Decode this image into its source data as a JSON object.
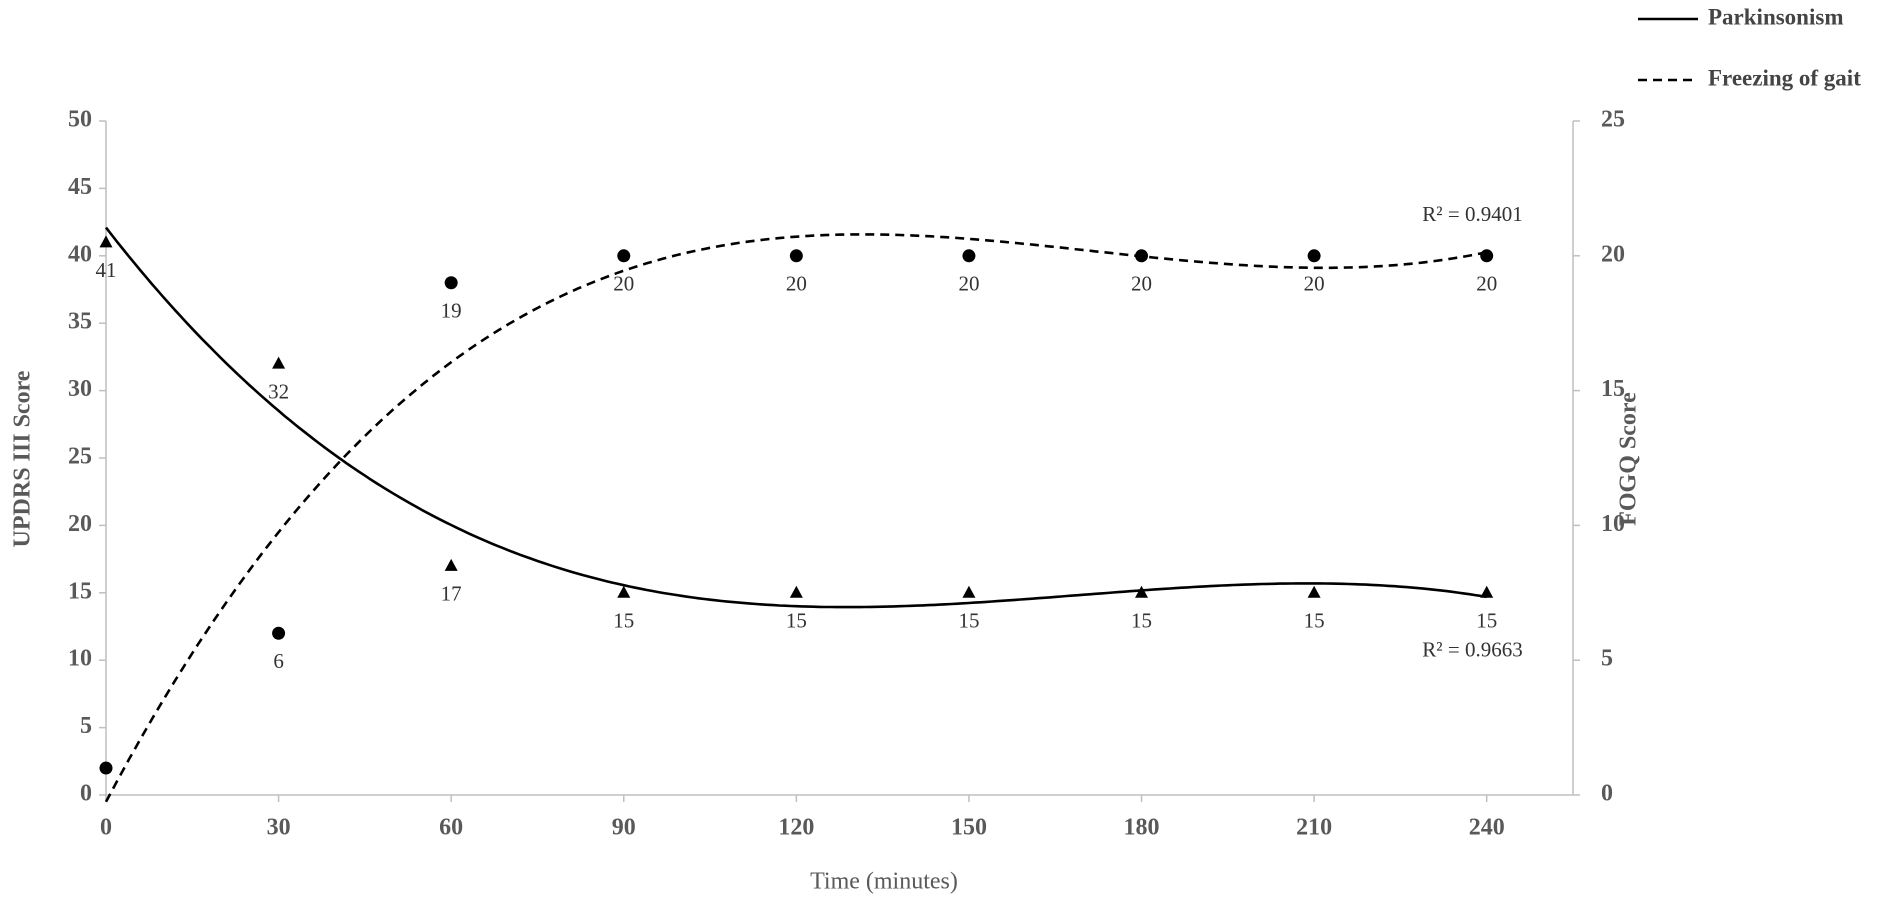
{
  "chart_data": {
    "type": "scatter",
    "x_label": "Time (minutes)",
    "y_label": "UPDRS III Score",
    "y2_label": "FOGQ Score",
    "x": [
      0,
      30,
      60,
      90,
      120,
      150,
      180,
      210,
      240
    ],
    "xlim": [
      0,
      255
    ],
    "xticks": [
      0,
      30,
      60,
      90,
      120,
      150,
      180,
      210,
      240
    ],
    "ylim": [
      0,
      50
    ],
    "yticks": [
      0,
      5,
      10,
      15,
      20,
      25,
      30,
      35,
      40,
      45,
      50
    ],
    "y2lim": [
      0,
      25
    ],
    "y2ticks": [
      0,
      5,
      10,
      15,
      20,
      25
    ],
    "grid": false,
    "legend": "top-right",
    "series": [
      {
        "name": "Parkinsonism",
        "color": "#000000",
        "marker": "triangle",
        "dash": "solid",
        "values": [
          41,
          32,
          17,
          15,
          15,
          15,
          15,
          15,
          15
        ],
        "trendline": {
          "order": 3,
          "r2_label": "R² = 0.9663"
        }
      },
      {
        "name": "Freezing of gait",
        "color": "#000000",
        "marker": "circle",
        "dash": "dashed",
        "axis": "y2",
        "values": [
          1,
          6,
          19,
          20,
          20,
          20,
          20,
          20,
          20
        ],
        "value_labels": [
          null,
          "6",
          "19",
          "20",
          "20",
          "20",
          "20",
          "20",
          "20"
        ],
        "trendline": {
          "order": 3,
          "r2_label": "R² = 0.9401"
        }
      }
    ]
  }
}
